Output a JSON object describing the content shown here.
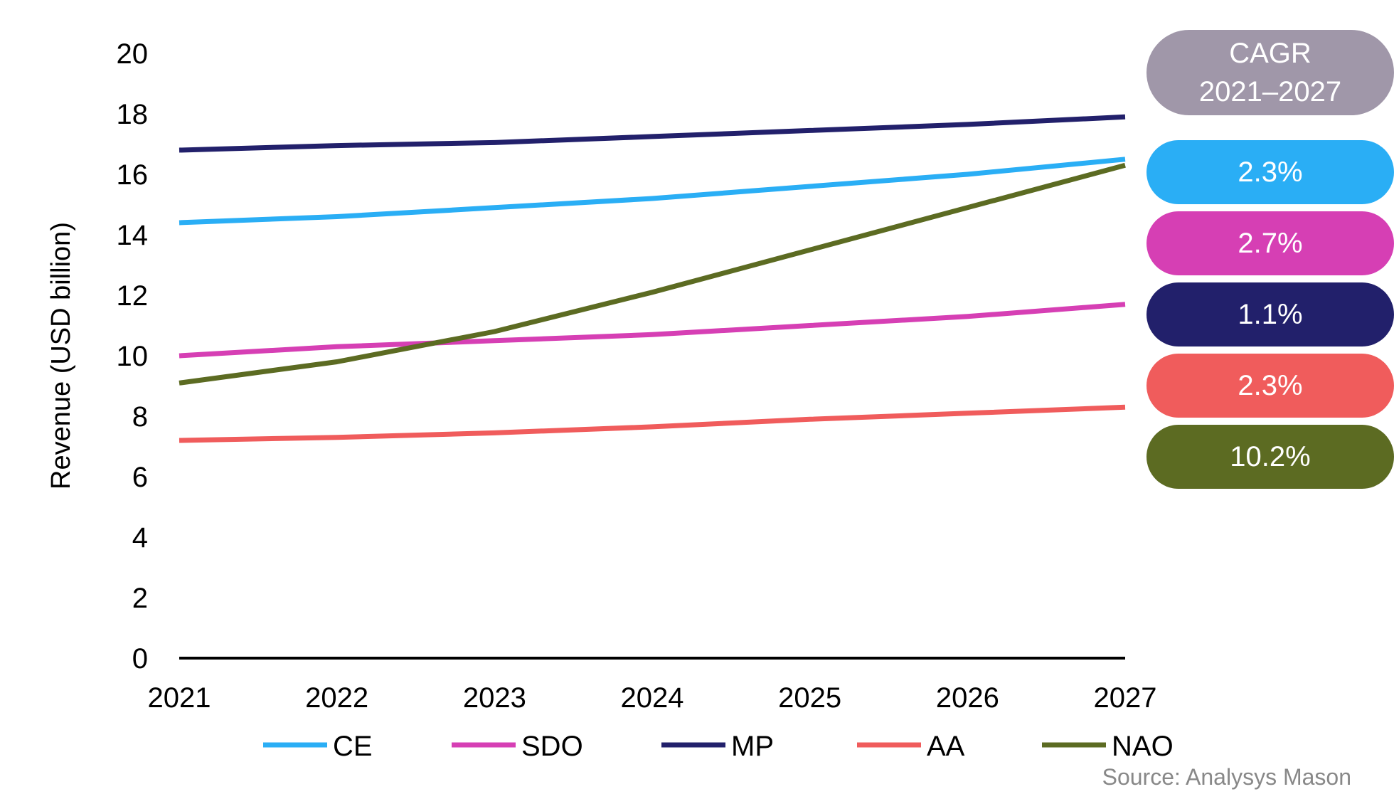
{
  "chart_data": {
    "type": "line",
    "title": "",
    "xlabel": "",
    "ylabel": "Revenue (USD billion)",
    "ylim": [
      0,
      20
    ],
    "y_ticks": [
      "0",
      "2",
      "4",
      "6",
      "8",
      "10",
      "12",
      "14",
      "16",
      "18",
      "20"
    ],
    "x": [
      "2021",
      "2022",
      "2023",
      "2024",
      "2025",
      "2026",
      "2027"
    ],
    "grid": false,
    "legend_position": "bottom",
    "series": [
      {
        "name": "CE",
        "color": "#2aaef5",
        "values": [
          14.4,
          14.6,
          14.9,
          15.2,
          15.6,
          16.0,
          16.5
        ]
      },
      {
        "name": "SDO",
        "color": "#d63fb4",
        "values": [
          10.0,
          10.3,
          10.5,
          10.7,
          11.0,
          11.3,
          11.7
        ]
      },
      {
        "name": "MP",
        "color": "#22206b",
        "values": [
          16.8,
          16.95,
          17.05,
          17.25,
          17.45,
          17.65,
          17.9
        ]
      },
      {
        "name": "AA",
        "color": "#f05c5c",
        "values": [
          7.2,
          7.3,
          7.45,
          7.65,
          7.9,
          8.1,
          8.3
        ]
      },
      {
        "name": "NAO",
        "color": "#5c6b22",
        "values": [
          9.1,
          9.8,
          10.8,
          12.1,
          13.5,
          14.9,
          16.3
        ]
      }
    ]
  },
  "cagr": {
    "header_line1": "CAGR",
    "header_line2": "2021–2027",
    "items": [
      {
        "label": "2.3%",
        "color": "#2aaef5"
      },
      {
        "label": "2.7%",
        "color": "#d63fb4"
      },
      {
        "label": "1.1%",
        "color": "#22206b"
      },
      {
        "label": "2.3%",
        "color": "#f05c5c"
      },
      {
        "label": "10.2%",
        "color": "#5c6b22"
      }
    ]
  },
  "source": "Source: Analysys Mason"
}
